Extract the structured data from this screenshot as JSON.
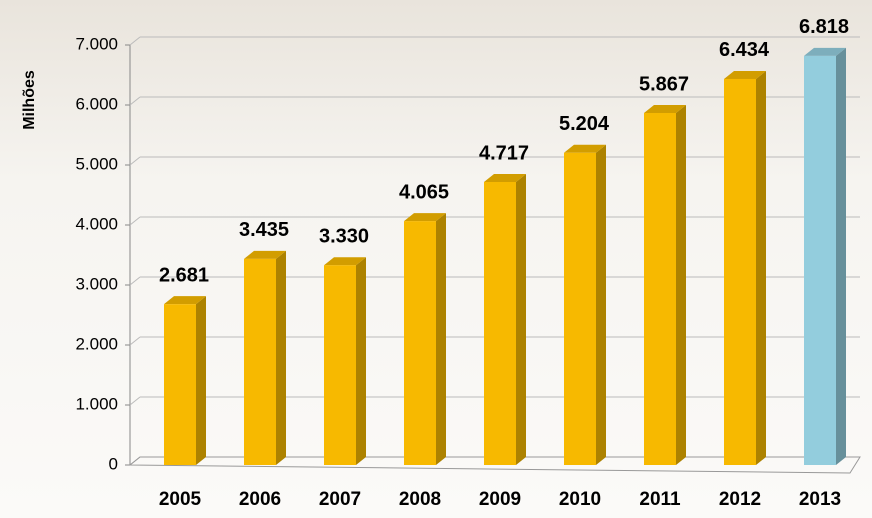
{
  "chart_data": {
    "type": "bar",
    "y_label": "Milhões",
    "categories": [
      "2005",
      "2006",
      "2007",
      "2008",
      "2009",
      "2010",
      "2011",
      "2012",
      "2013"
    ],
    "values": [
      2681,
      3435,
      3330,
      4065,
      4717,
      5204,
      5867,
      6434,
      6818
    ],
    "value_labels": [
      "2.681",
      "3.435",
      "3.330",
      "4.065",
      "4.717",
      "5.204",
      "5.867",
      "6.434",
      "6.818"
    ],
    "colors": [
      "#f7b900",
      "#f7b900",
      "#f7b900",
      "#f7b900",
      "#f7b900",
      "#f7b900",
      "#f7b900",
      "#f7b900",
      "#93cddd"
    ],
    "ylim": [
      0,
      7000
    ],
    "yticks": [
      0,
      {
        "value": 1000,
        "label": "1.000"
      },
      {
        "value": 2000,
        "label": "2.000"
      },
      {
        "value": 3000,
        "label": "3.000"
      },
      {
        "value": 4000,
        "label": "4.000"
      },
      {
        "value": 5000,
        "label": "5.000"
      },
      {
        "value": 6000,
        "label": "6.000"
      },
      {
        "value": 7000,
        "label": "7.000"
      }
    ],
    "grid": true
  }
}
